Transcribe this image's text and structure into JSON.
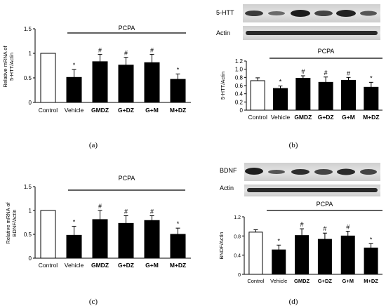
{
  "panel_labels": [
    "(a)",
    "(b)",
    "(c)",
    "(d)"
  ],
  "group_label": "PCPA",
  "blots": {
    "b": {
      "target": "5-HTT",
      "control": "Actin"
    },
    "d": {
      "target": "BDNF",
      "control": "Actin"
    }
  },
  "chart_data": [
    {
      "type": "bar",
      "panel": "(a)",
      "ylabel": "Relative mRNA of 5-HTT/Actin",
      "ylabel_lines": [
        "Relative mRNA of",
        "5-HTT/Actin"
      ],
      "ylim": [
        0,
        1.5
      ],
      "yticks": [
        "0",
        "0.5",
        "1",
        "1.5"
      ],
      "categories": [
        "Control",
        "Vehicle",
        "GMDZ",
        "G+DZ",
        "G+M",
        "M+DZ"
      ],
      "bold_categories": [
        false,
        false,
        true,
        true,
        true,
        true
      ],
      "values": [
        1.0,
        0.51,
        0.83,
        0.76,
        0.81,
        0.47
      ],
      "errors": [
        0,
        0.16,
        0.15,
        0.16,
        0.17,
        0.11
      ],
      "markers": [
        "",
        "*",
        "#",
        "#",
        "#",
        "*"
      ],
      "bar_colors": [
        "#ffffff",
        "#000000",
        "#000000",
        "#000000",
        "#000000",
        "#000000"
      ],
      "group_label": "PCPA",
      "grid": false
    },
    {
      "type": "bar",
      "panel": "(b)",
      "ylabel": "5-HTT/Actin",
      "ylabel_lines": [
        "5-HTT/Actin"
      ],
      "ylim": [
        0,
        1.2
      ],
      "yticks": [
        "0",
        "0.2",
        "0.4",
        "0.6",
        "0.8",
        "1.0",
        "1.2"
      ],
      "categories": [
        "Control",
        "Vehicle",
        "GMDZ",
        "G+DZ",
        "G+M",
        "M+DZ"
      ],
      "bold_categories": [
        false,
        false,
        true,
        true,
        true,
        true
      ],
      "values": [
        0.72,
        0.53,
        0.78,
        0.68,
        0.73,
        0.56
      ],
      "errors": [
        0.07,
        0.06,
        0.06,
        0.13,
        0.07,
        0.12
      ],
      "markers": [
        "",
        "*",
        "#",
        "#",
        "#",
        "*"
      ],
      "bar_colors": [
        "#ffffff",
        "#000000",
        "#000000",
        "#000000",
        "#000000",
        "#000000"
      ],
      "group_label": "PCPA",
      "grid": false
    },
    {
      "type": "bar",
      "panel": "(c)",
      "ylabel": "Relative mRNA of BDNF/Actin",
      "ylabel_lines": [
        "Relative mRNA of",
        "BDNF/Actin"
      ],
      "ylim": [
        0,
        1.5
      ],
      "yticks": [
        "0",
        "0.5",
        "1",
        "1.5"
      ],
      "categories": [
        "Control",
        "Vehicle",
        "GMDZ",
        "G+DZ",
        "G+M",
        "M+DZ"
      ],
      "bold_categories": [
        false,
        false,
        true,
        true,
        true,
        true
      ],
      "values": [
        1.0,
        0.48,
        0.81,
        0.73,
        0.79,
        0.5
      ],
      "errors": [
        0,
        0.19,
        0.19,
        0.16,
        0.1,
        0.13
      ],
      "markers": [
        "",
        "*",
        "#",
        "#",
        "#",
        "*"
      ],
      "bar_colors": [
        "#ffffff",
        "#000000",
        "#000000",
        "#000000",
        "#000000",
        "#000000"
      ],
      "group_label": "PCPA",
      "grid": false
    },
    {
      "type": "bar",
      "panel": "(d)",
      "ylabel": "BNDF/Actin",
      "ylabel_lines": [
        "BNDF/Actin"
      ],
      "ylim": [
        0,
        1.2
      ],
      "yticks": [
        "0",
        "0.4",
        "0.8",
        "1.2"
      ],
      "categories": [
        "Control",
        "Vehicle",
        "GMDZ",
        "G+DZ",
        "G+M",
        "M+DZ"
      ],
      "bold_categories": [
        false,
        false,
        true,
        true,
        true,
        true
      ],
      "values": [
        0.88,
        0.51,
        0.81,
        0.73,
        0.8,
        0.55
      ],
      "errors": [
        0.05,
        0.1,
        0.14,
        0.13,
        0.1,
        0.09
      ],
      "markers": [
        "",
        "*",
        "#",
        "#",
        "#",
        "*"
      ],
      "bar_colors": [
        "#ffffff",
        "#000000",
        "#000000",
        "#000000",
        "#000000",
        "#000000"
      ],
      "group_label": "PCPA",
      "grid": false
    }
  ]
}
